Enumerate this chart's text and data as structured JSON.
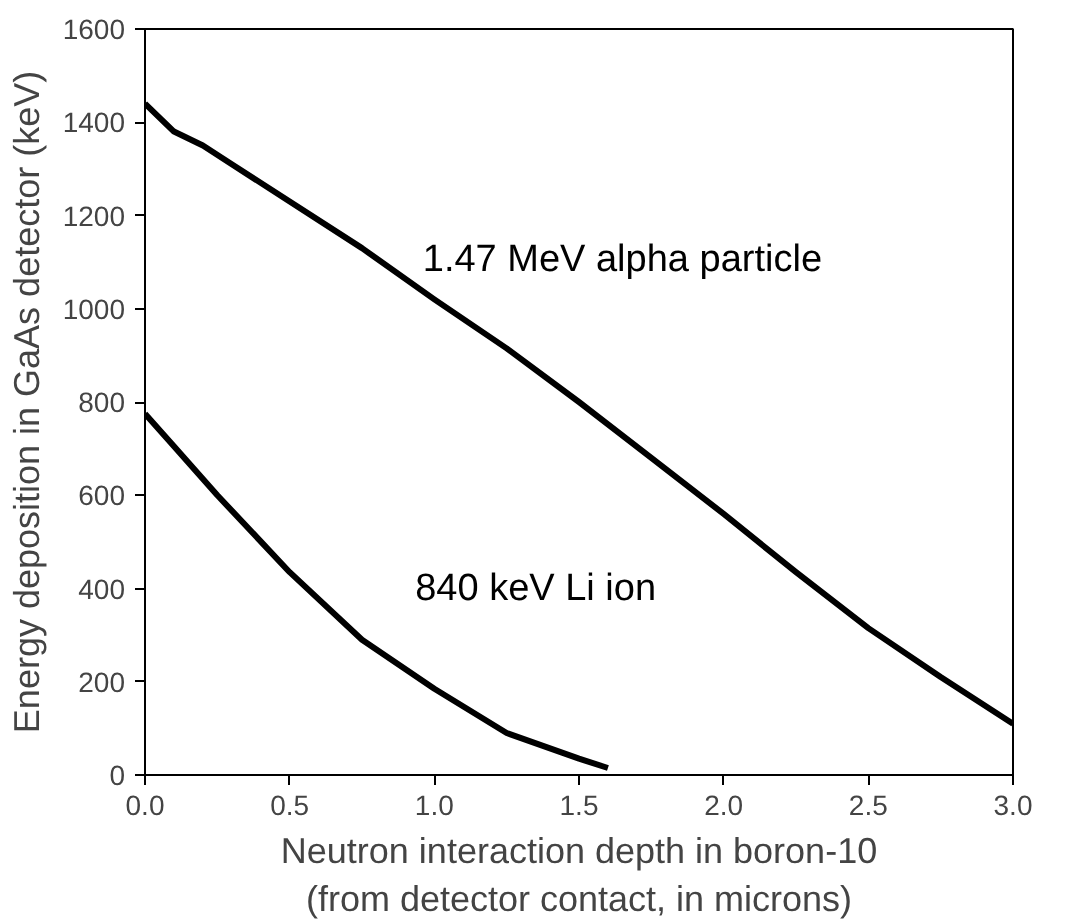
{
  "chart_data": {
    "type": "line",
    "xlabel": "Neutron interaction depth in boron-10\n(from detector contact, in microns)",
    "ylabel": "Energy deposition in GaAs detector (keV)",
    "series": [
      {
        "name": "1.47 MeV alpha particle",
        "color": "#000000",
        "x": [
          0,
          0.1,
          0.2,
          0.3,
          0.5,
          0.75,
          1.0,
          1.25,
          1.5,
          1.75,
          2.0,
          2.25,
          2.5,
          2.75,
          3.0
        ],
        "values": [
          1440,
          1380,
          1350,
          1310,
          1230,
          1130,
          1020,
          915,
          800,
          680,
          560,
          435,
          315,
          210,
          110
        ]
      },
      {
        "name": "840 keV Li ion",
        "color": "#000000",
        "x": [
          0,
          0.1,
          0.25,
          0.5,
          0.75,
          1.0,
          1.25,
          1.5,
          1.6
        ],
        "values": [
          775,
          705,
          600,
          435,
          290,
          185,
          90,
          35,
          15
        ]
      }
    ],
    "xlim": [
      0,
      3
    ],
    "ylim": [
      0,
      1600
    ],
    "xticks": [
      {
        "value": 0,
        "label": "0.0"
      },
      {
        "value": 0.5,
        "label": "0.5"
      },
      {
        "value": 1,
        "label": "1.0"
      },
      {
        "value": 1.5,
        "label": "1.5"
      },
      {
        "value": 2,
        "label": "2.0"
      },
      {
        "value": 2.5,
        "label": "2.5"
      },
      {
        "value": 3,
        "label": "3.0"
      }
    ],
    "yticks": [
      0,
      200,
      400,
      600,
      800,
      1000,
      1200,
      1400,
      1600
    ],
    "grid": false,
    "legend": false,
    "marker": "none",
    "line_style": "solid"
  }
}
